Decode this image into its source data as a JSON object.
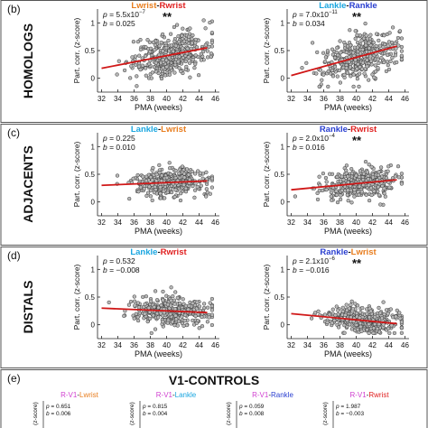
{
  "colors": {
    "orange": "#e87d1e",
    "red": "#e02020",
    "blue": "#2a3fd0",
    "cyan": "#1aa6e0",
    "magenta": "#d040d0",
    "point_fill": "#b8b8b8",
    "point_stroke": "#3a3a3a",
    "fit_line": "#d01818",
    "frame": "#555555"
  },
  "sections": [
    {
      "letter": "(b)",
      "row_label": "HOMOLOGS"
    },
    {
      "letter": "(c)",
      "row_label": "ADJACENTS"
    },
    {
      "letter": "(d)",
      "row_label": "DISTALS"
    },
    {
      "letter": "(e)",
      "row_label": "V1-CONTROLS"
    }
  ],
  "chart_data": [
    {
      "type": "scatter",
      "title_left": "Lwrist",
      "title_sep": "-",
      "title_right": "Rwrist",
      "title_left_color": "orange",
      "title_right_color": "red",
      "p_text": "= 5.5x10",
      "p_exp": "−7",
      "b_text": "= 0.025",
      "sig": "**",
      "xlabel": "PMA (weeks)",
      "ylabel": "Part. corr. (z-score)",
      "xlim": [
        31.5,
        46.5
      ],
      "ylim": [
        -0.25,
        1.25
      ],
      "xticks": [
        "32",
        "34",
        "36",
        "38",
        "40",
        "42",
        "44",
        "46"
      ],
      "yticks": [
        "0",
        "0.5",
        "1"
      ],
      "fit": {
        "x": [
          32,
          45
        ],
        "y": [
          0.18,
          0.55
        ]
      },
      "points": {
        "n": 380,
        "x_center": 40.5,
        "x_spread": 3.0,
        "y_noise": 0.19
      }
    },
    {
      "type": "scatter",
      "title_left": "Lankle",
      "title_sep": "-",
      "title_right": "Rankle",
      "title_left_color": "cyan",
      "title_right_color": "blue",
      "p_text": "= 7.0x10",
      "p_exp": "−11",
      "b_text": "= 0.034",
      "sig": "**",
      "xlabel": "PMA (weeks)",
      "ylabel": "Part. corr. (z-score)",
      "xlim": [
        31.5,
        46.5
      ],
      "ylim": [
        -0.25,
        1.25
      ],
      "xticks": [
        "32",
        "34",
        "36",
        "38",
        "40",
        "42",
        "44",
        "46"
      ],
      "yticks": [
        "0",
        "0.5",
        "1"
      ],
      "fit": {
        "x": [
          32,
          45
        ],
        "y": [
          0.05,
          0.58
        ]
      },
      "points": {
        "n": 380,
        "x_center": 40.5,
        "x_spread": 3.0,
        "y_noise": 0.2
      }
    },
    {
      "type": "scatter",
      "title_left": "Lankle",
      "title_sep": "-",
      "title_right": "Lwrist",
      "title_left_color": "cyan",
      "title_right_color": "orange",
      "p_text": "= 0.225",
      "p_exp": "",
      "b_text": "= 0.010",
      "sig": "",
      "xlabel": "PMA (weeks)",
      "ylabel": "Part. corr. (z-score)",
      "xlim": [
        31.5,
        46.5
      ],
      "ylim": [
        -0.25,
        1.25
      ],
      "xticks": [
        "32",
        "34",
        "36",
        "38",
        "40",
        "42",
        "44",
        "46"
      ],
      "yticks": [
        "0",
        "0.5",
        "1"
      ],
      "fit": {
        "x": [
          32,
          45
        ],
        "y": [
          0.3,
          0.38
        ]
      },
      "points": {
        "n": 360,
        "x_center": 40.5,
        "x_spread": 3.0,
        "y_noise": 0.13
      }
    },
    {
      "type": "scatter",
      "title_left": "Rankle",
      "title_sep": "-",
      "title_right": "Rwrist",
      "title_left_color": "blue",
      "title_right_color": "red",
      "p_text": "= 2.0x10",
      "p_exp": "−4",
      "b_text": "= 0.016",
      "sig": "**",
      "xlabel": "PMA (weeks)",
      "ylabel": "Part. corr. (z-score)",
      "xlim": [
        31.5,
        46.5
      ],
      "ylim": [
        -0.25,
        1.25
      ],
      "xticks": [
        "32",
        "34",
        "36",
        "38",
        "40",
        "42",
        "44",
        "46"
      ],
      "yticks": [
        "0",
        "0.5",
        "1"
      ],
      "fit": {
        "x": [
          32,
          45
        ],
        "y": [
          0.22,
          0.4
        ]
      },
      "points": {
        "n": 360,
        "x_center": 40.5,
        "x_spread": 3.0,
        "y_noise": 0.14
      }
    },
    {
      "type": "scatter",
      "title_left": "Lankle",
      "title_sep": "-",
      "title_right": "Rwrist",
      "title_left_color": "cyan",
      "title_right_color": "red",
      "p_text": "= 0.532",
      "p_exp": "",
      "b_text": "= −0.008",
      "sig": "",
      "xlabel": "PMA (weeks)",
      "ylabel": "Part. corr. (z-score)",
      "xlim": [
        31.5,
        46.5
      ],
      "ylim": [
        -0.25,
        1.25
      ],
      "xticks": [
        "32",
        "34",
        "36",
        "38",
        "40",
        "42",
        "44",
        "46"
      ],
      "yticks": [
        "0",
        "0.5",
        "1"
      ],
      "fit": {
        "x": [
          32,
          45
        ],
        "y": [
          0.3,
          0.22
        ]
      },
      "points": {
        "n": 360,
        "x_center": 40.5,
        "x_spread": 3.0,
        "y_noise": 0.12
      }
    },
    {
      "type": "scatter",
      "title_left": "Rankle",
      "title_sep": "-",
      "title_right": "Lwrist",
      "title_left_color": "blue",
      "title_right_color": "orange",
      "p_text": "= 2.1x10",
      "p_exp": "−6",
      "b_text": "= −0.016",
      "sig": "**",
      "xlabel": "PMA (weeks)",
      "ylabel": "Part. corr. (z-score)",
      "xlim": [
        31.5,
        46.5
      ],
      "ylim": [
        -0.25,
        1.25
      ],
      "xticks": [
        "32",
        "34",
        "36",
        "38",
        "40",
        "42",
        "44",
        "46"
      ],
      "yticks": [
        "0",
        "0.5",
        "1"
      ],
      "fit": {
        "x": [
          32,
          45
        ],
        "y": [
          0.2,
          0.02
        ]
      },
      "points": {
        "n": 360,
        "x_center": 40.5,
        "x_spread": 3.0,
        "y_noise": 0.11
      }
    },
    {
      "type": "scatter",
      "title_left": "R-V1",
      "title_sep": "-",
      "title_right": "Lwrist",
      "title_left_color": "magenta",
      "title_right_color": "orange",
      "p_text": "= 0.651",
      "p_exp": "",
      "b_text": "= 0.006",
      "sig": "",
      "ylabel": "(z-score)"
    },
    {
      "type": "scatter",
      "title_left": "R-V1",
      "title_sep": "-",
      "title_right": "Lankle",
      "title_left_color": "magenta",
      "title_right_color": "cyan",
      "p_text": "= 0.815",
      "p_exp": "",
      "b_text": "= 0.004",
      "sig": "",
      "ylabel": "(z-score)"
    },
    {
      "type": "scatter",
      "title_left": "R-V1",
      "title_sep": "-",
      "title_right": "Rankle",
      "title_left_color": "magenta",
      "title_right_color": "blue",
      "p_text": "= 0.059",
      "p_exp": "",
      "b_text": "= 0.008",
      "sig": "",
      "ylabel": "(z-score)"
    },
    {
      "type": "scatter",
      "title_left": "R-V1",
      "title_sep": "-",
      "title_right": "Rwrist",
      "title_left_color": "magenta",
      "title_right_color": "red",
      "p_text": "= 1.987",
      "p_exp": "",
      "b_text": "= −0.003",
      "sig": "",
      "ylabel": "(z-score)"
    }
  ]
}
